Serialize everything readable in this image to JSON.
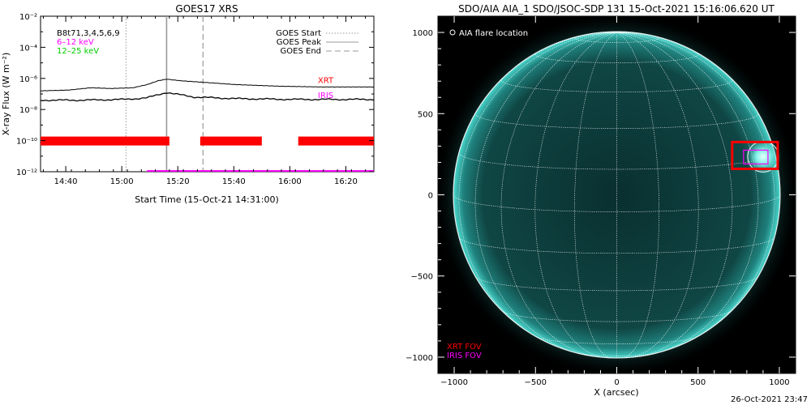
{
  "footer": {
    "timestamp": "26-Oct-2021 23:47"
  },
  "chart_data": [
    {
      "type": "line",
      "title": "GOES17 XRS",
      "xlabel": "Start Time (15-Oct-21 14:31:00)",
      "ylabel": "X-ray Flux (W m⁻²)",
      "y_scale": "log",
      "ylim": [
        1e-12,
        0.01
      ],
      "y_ticks": [
        "10⁻¹²",
        "10⁻¹⁰",
        "10⁻⁸",
        "10⁻⁶",
        "10⁻⁴",
        "10⁻²"
      ],
      "x_ticks": [
        "14:40",
        "15:00",
        "15:20",
        "15:40",
        "16:00",
        "16:20"
      ],
      "x_range_minutes": [
        0,
        119
      ],
      "x_tick_minutes": [
        9,
        29,
        49,
        69,
        89,
        109
      ],
      "info_text": "B8t71,3,4,5,6,9",
      "legend_channels": [
        {
          "label": "6–12 keV",
          "color": "#ff00ff"
        },
        {
          "label": "12–25 keV",
          "color": "#00cc00"
        }
      ],
      "legend_events": [
        {
          "label": "GOES Start",
          "style": "dotted"
        },
        {
          "label": "GOES Peak",
          "style": "solid"
        },
        {
          "label": "GOES End",
          "style": "dashed"
        }
      ],
      "event_lines_minutes": {
        "start": 30.5,
        "peak": 45,
        "end": 58
      },
      "series": [
        {
          "color": "#000000",
          "points": [
            [
              0,
              -6.8
            ],
            [
              10,
              -6.75
            ],
            [
              18,
              -6.6
            ],
            [
              25,
              -6.65
            ],
            [
              33,
              -6.6
            ],
            [
              38,
              -6.4
            ],
            [
              42,
              -6.15
            ],
            [
              45,
              -6.05
            ],
            [
              50,
              -6.15
            ],
            [
              58,
              -6.25
            ],
            [
              70,
              -6.4
            ],
            [
              85,
              -6.5
            ],
            [
              100,
              -6.55
            ],
            [
              119,
              -6.55
            ]
          ]
        },
        {
          "color": "#000000",
          "points": [
            [
              0,
              -7.4
            ],
            [
              15,
              -7.4
            ],
            [
              30,
              -7.35
            ],
            [
              38,
              -7.25
            ],
            [
              42,
              -7.05
            ],
            [
              45,
              -6.9
            ],
            [
              48,
              -7.0
            ],
            [
              55,
              -7.2
            ],
            [
              70,
              -7.3
            ],
            [
              90,
              -7.35
            ],
            [
              119,
              -7.35
            ]
          ]
        }
      ],
      "instrument_labels": [
        {
          "text": "XRT",
          "color": "#ff0000",
          "minute": 99,
          "log_flux": -6.3
        },
        {
          "text": "IRIS",
          "color": "#ff00ff",
          "minute": 99,
          "log_flux": -7.25
        }
      ],
      "xrt_coverage_minutes": [
        [
          0,
          46
        ],
        [
          57,
          79
        ],
        [
          92,
          119
        ]
      ],
      "iris_coverage_minutes": [
        [
          38,
          119
        ]
      ]
    },
    {
      "type": "image",
      "title": "SDO/AIA AIA_1 SDO/JSOC-SDP 131 15-Oct-2021 15:16:06.620 UT",
      "xlabel": "X (arcsec)",
      "legend": "AIA flare location",
      "fov_labels": [
        {
          "text": "XRT FOV",
          "color": "#ff0000"
        },
        {
          "text": "IRIS FOV",
          "color": "#ff00ff"
        }
      ],
      "x_ticks": [
        "−1000",
        "−500",
        "0",
        "500",
        "1000"
      ],
      "y_ticks": [
        "−1000",
        "−500",
        "0",
        "500",
        "1000"
      ],
      "x_tick_values": [
        -1000,
        -500,
        0,
        500,
        1000
      ],
      "y_tick_values": [
        -1000,
        -500,
        0,
        500,
        1000
      ],
      "range_arcsec": [
        -1100,
        1100
      ],
      "solar_radius_arcsec": 1005,
      "flare_location_arcsec": [
        900,
        235
      ],
      "xrt_fov_arcsec": [
        [
          710,
          160
        ],
        [
          990,
          325
        ]
      ],
      "iris_fov_arcsec": [
        [
          780,
          190
        ],
        [
          930,
          275
        ]
      ],
      "disk_color": "#0d3a3a",
      "limb_color": "#38c8c0"
    }
  ]
}
